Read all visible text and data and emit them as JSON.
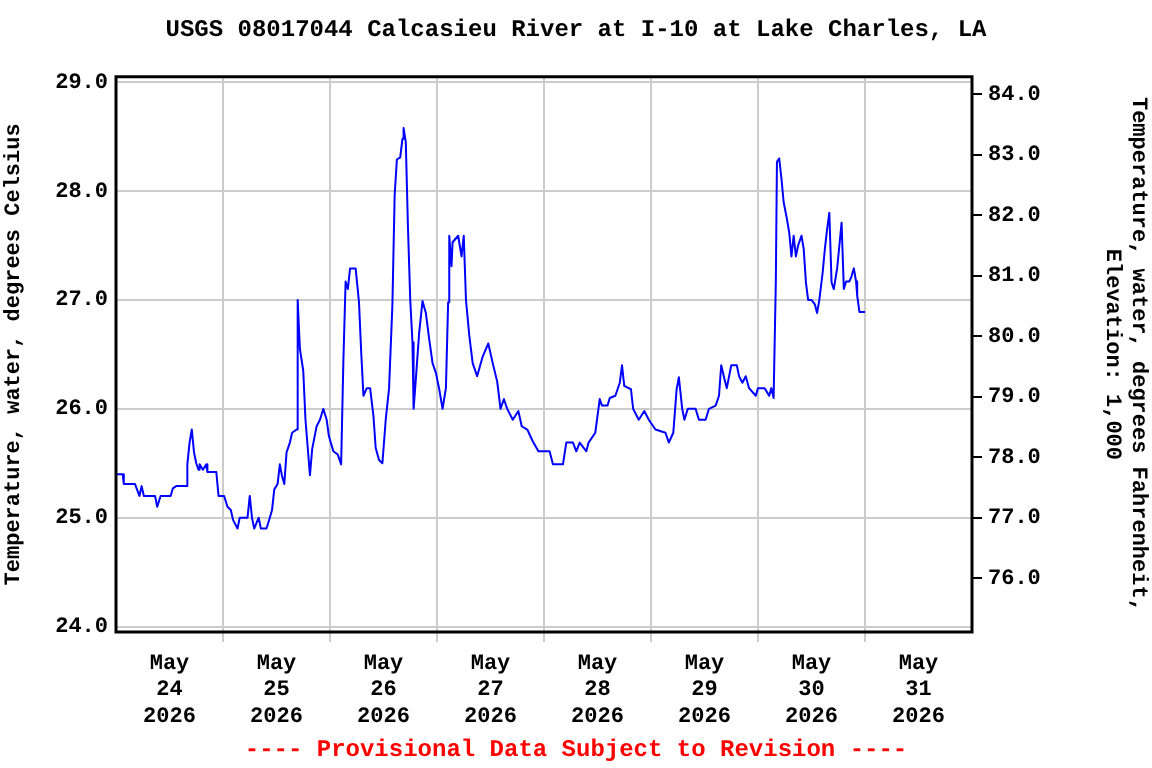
{
  "chart_data": {
    "type": "line",
    "title": "USGS 08017044 Calcasieu River at I-10 at Lake Charles, LA",
    "ylabel": "Temperature, water, degrees Celsius",
    "y2label": "Temperature, water, degrees Fahrenheit,\nElevation: 1,000",
    "annotations": [
      "---- Provisional Data Subject to Revision ----"
    ],
    "x": [
      "2026-05-24T00:00",
      "2026-05-24T01:30",
      "2026-05-24T01:45",
      "2026-05-24T04:15",
      "2026-05-24T05:15",
      "2026-05-24T05:45",
      "2026-05-24T06:15",
      "2026-05-24T08:45",
      "2026-05-24T09:15",
      "2026-05-24T10:00",
      "2026-05-24T12:15",
      "2026-05-24T12:45",
      "2026-05-24T13:30",
      "2026-05-24T15:45",
      "2026-05-24T16:00",
      "2026-05-24T16:30",
      "2026-05-24T17:00",
      "2026-05-24T17:30",
      "2026-05-24T18:00",
      "2026-05-24T18:30",
      "2026-05-24T18:45",
      "2026-05-24T19:30",
      "2026-05-24T20:15",
      "2026-05-24T20:30",
      "2026-05-24T22:30",
      "2026-05-24T23:00",
      "2026-05-25T00:15",
      "2026-05-25T01:00",
      "2026-05-25T01:45",
      "2026-05-25T02:15",
      "2026-05-25T03:15",
      "2026-05-25T03:45",
      "2026-05-25T05:30",
      "2026-05-25T06:00",
      "2026-05-25T06:30",
      "2026-05-25T07:00",
      "2026-05-25T08:00",
      "2026-05-25T08:30",
      "2026-05-25T09:45",
      "2026-05-25T10:30",
      "2026-05-25T11:00",
      "2026-05-25T11:30",
      "2026-05-25T12:15",
      "2026-05-25T12:45",
      "2026-05-25T13:15",
      "2026-05-25T13:45",
      "2026-05-25T14:15",
      "2026-05-25T15:00",
      "2026-05-25T15:30",
      "2026-05-25T16:30",
      "2026-05-25T16:45",
      "2026-05-25T17:15",
      "2026-05-25T18:00",
      "2026-05-25T18:30",
      "2026-05-25T19:30",
      "2026-05-25T20:00",
      "2026-05-25T21:00",
      "2026-05-25T21:45",
      "2026-05-25T22:30",
      "2026-05-25T23:15",
      "2026-05-25T23:45",
      "2026-05-26T00:45",
      "2026-05-26T01:45",
      "2026-05-26T02:30",
      "2026-05-26T03:00",
      "2026-05-26T03:30",
      "2026-05-26T04:00",
      "2026-05-26T04:30",
      "2026-05-26T05:45",
      "2026-05-26T06:30",
      "2026-05-26T07:00",
      "2026-05-26T07:30",
      "2026-05-26T08:15",
      "2026-05-26T09:00",
      "2026-05-26T09:45",
      "2026-05-26T10:15",
      "2026-05-26T11:00",
      "2026-05-26T11:45",
      "2026-05-26T12:30",
      "2026-05-26T13:15",
      "2026-05-26T14:00",
      "2026-05-26T14:30",
      "2026-05-26T15:00",
      "2026-05-26T15:45",
      "2026-05-26T16:15",
      "2026-05-26T16:30",
      "2026-05-26T17:00",
      "2026-05-26T17:30",
      "2026-05-26T18:00",
      "2026-05-26T18:30",
      "2026-05-26T18:45",
      "2026-05-26T19:15",
      "2026-05-26T20:00",
      "2026-05-26T20:45",
      "2026-05-26T21:30",
      "2026-05-26T22:15",
      "2026-05-26T23:00",
      "2026-05-26T23:45",
      "2026-05-27T00:30",
      "2026-05-27T01:15",
      "2026-05-27T02:00",
      "2026-05-27T02:30",
      "2026-05-27T02:45",
      "2026-05-27T03:15",
      "2026-05-27T03:30",
      "2026-05-27T04:45",
      "2026-05-27T05:30",
      "2026-05-27T06:00",
      "2026-05-27T06:30",
      "2026-05-27T07:15",
      "2026-05-27T08:00",
      "2026-05-27T09:00",
      "2026-05-27T10:15",
      "2026-05-27T11:30",
      "2026-05-27T12:30",
      "2026-05-27T13:30",
      "2026-05-27T14:15",
      "2026-05-27T15:00",
      "2026-05-27T15:45",
      "2026-05-27T17:00",
      "2026-05-27T18:15",
      "2026-05-27T19:00",
      "2026-05-27T20:15",
      "2026-05-27T21:30",
      "2026-05-27T22:45",
      "2026-05-28T01:15",
      "2026-05-28T02:00",
      "2026-05-28T04:15",
      "2026-05-28T05:00",
      "2026-05-28T06:30",
      "2026-05-28T07:15",
      "2026-05-28T08:00",
      "2026-05-28T09:30",
      "2026-05-28T10:00",
      "2026-05-28T11:30",
      "2026-05-28T12:30",
      "2026-05-28T13:00",
      "2026-05-28T14:15",
      "2026-05-28T14:45",
      "2026-05-28T16:00",
      "2026-05-28T17:00",
      "2026-05-28T17:30",
      "2026-05-28T18:00",
      "2026-05-28T19:30",
      "2026-05-28T20:00",
      "2026-05-28T21:15",
      "2026-05-28T22:30",
      "2026-05-28T23:30",
      "2026-05-29T01:00",
      "2026-05-29T03:15",
      "2026-05-29T04:00",
      "2026-05-29T05:00",
      "2026-05-29T05:45",
      "2026-05-29T06:15",
      "2026-05-29T07:00",
      "2026-05-29T07:30",
      "2026-05-29T08:15",
      "2026-05-29T10:00",
      "2026-05-29T10:45",
      "2026-05-29T12:15",
      "2026-05-29T13:00",
      "2026-05-29T14:30",
      "2026-05-29T15:15",
      "2026-05-29T15:45",
      "2026-05-29T16:30",
      "2026-05-29T17:00",
      "2026-05-29T18:00",
      "2026-05-29T19:15",
      "2026-05-29T19:45",
      "2026-05-29T20:30",
      "2026-05-29T21:15",
      "2026-05-29T22:00",
      "2026-05-29T23:30",
      "2026-05-30T00:00",
      "2026-05-30T01:30",
      "2026-05-30T02:30",
      "2026-05-30T03:00",
      "2026-05-30T03:30",
      "2026-05-30T04:00",
      "2026-05-30T04:15",
      "2026-05-30T04:45",
      "2026-05-30T05:15",
      "2026-05-30T05:45",
      "2026-05-30T06:30",
      "2026-05-30T07:00",
      "2026-05-30T07:30",
      "2026-05-30T08:00",
      "2026-05-30T08:30",
      "2026-05-30T09:00",
      "2026-05-30T09:45",
      "2026-05-30T10:15",
      "2026-05-30T10:45",
      "2026-05-30T11:15",
      "2026-05-30T12:00",
      "2026-05-30T12:45",
      "2026-05-30T13:15",
      "2026-05-30T13:45",
      "2026-05-30T14:30",
      "2026-05-30T15:00",
      "2026-05-30T15:30",
      "2026-05-30T16:00",
      "2026-05-30T16:30",
      "2026-05-30T17:00",
      "2026-05-30T17:45",
      "2026-05-30T18:15",
      "2026-05-30T18:45",
      "2026-05-30T19:15",
      "2026-05-30T19:45",
      "2026-05-30T20:30",
      "2026-05-30T21:00",
      "2026-05-30T21:30",
      "2026-05-30T22:00",
      "2026-05-30T22:15",
      "2026-05-30T22:45",
      "2026-05-31T00:00"
    ],
    "series": [
      {
        "color": "#0000ff",
        "values": [
          25.4,
          25.4,
          25.31,
          25.31,
          25.2,
          25.29,
          25.2,
          25.2,
          25.1,
          25.2,
          25.2,
          25.27,
          25.29,
          25.29,
          25.49,
          25.69,
          25.81,
          25.6,
          25.5,
          25.44,
          25.49,
          25.44,
          25.49,
          25.42,
          25.42,
          25.2,
          25.2,
          25.1,
          25.07,
          24.98,
          24.9,
          25.0,
          25.0,
          25.2,
          25.0,
          24.9,
          25.0,
          24.9,
          24.9,
          25.0,
          25.07,
          25.26,
          25.31,
          25.49,
          25.38,
          25.31,
          25.6,
          25.69,
          25.78,
          25.81,
          27.0,
          26.55,
          26.35,
          25.9,
          25.39,
          25.63,
          25.84,
          25.9,
          26.0,
          25.9,
          25.75,
          25.61,
          25.58,
          25.49,
          26.44,
          27.17,
          27.1,
          27.29,
          27.29,
          26.98,
          26.52,
          26.12,
          26.19,
          26.19,
          25.93,
          25.64,
          25.53,
          25.5,
          25.9,
          26.19,
          26.96,
          27.96,
          28.29,
          28.31,
          28.48,
          28.58,
          28.45,
          27.65,
          27.0,
          26.61,
          26.0,
          26.27,
          26.7,
          26.99,
          26.88,
          26.64,
          26.42,
          26.33,
          26.18,
          26.0,
          26.19,
          26.98,
          27.59,
          27.31,
          27.53,
          27.59,
          27.4,
          27.59,
          27.0,
          26.67,
          26.42,
          26.3,
          26.48,
          26.6,
          26.42,
          26.25,
          26.0,
          26.09,
          26.0,
          25.9,
          25.98,
          25.84,
          25.81,
          25.7,
          25.61,
          25.61,
          25.49,
          25.49,
          25.69,
          25.69,
          25.61,
          25.69,
          25.61,
          25.69,
          25.78,
          26.09,
          26.03,
          26.03,
          26.1,
          26.12,
          26.24,
          26.4,
          26.21,
          26.18,
          26.0,
          25.9,
          25.98,
          25.9,
          25.81,
          25.78,
          25.69,
          25.78,
          26.18,
          26.29,
          26.0,
          25.9,
          26.0,
          26.0,
          25.9,
          25.9,
          26.0,
          26.03,
          26.12,
          26.4,
          26.27,
          26.19,
          26.4,
          26.4,
          26.3,
          26.24,
          26.3,
          26.19,
          26.12,
          26.19,
          26.19,
          26.12,
          26.19,
          26.1,
          27.17,
          28.27,
          28.3,
          28.12,
          27.9,
          27.74,
          27.62,
          27.4,
          27.59,
          27.4,
          27.5,
          27.59,
          27.47,
          27.16,
          27.0,
          27.0,
          26.96,
          26.88,
          27.0,
          27.25,
          27.47,
          27.65,
          27.8,
          27.16,
          27.1,
          27.29,
          27.5,
          27.71,
          27.1,
          27.17,
          27.17,
          27.22,
          27.29,
          27.17,
          27.04,
          26.89,
          26.89
        ]
      }
    ],
    "xlim": [
      "2026-05-24T00:00",
      "2026-06-01T00:00"
    ],
    "xticks": [
      {
        "value": "2026-05-24T12:00",
        "label": "May 24 2026"
      },
      {
        "value": "2026-05-25T00:00",
        "label": null
      },
      {
        "value": "2026-05-25T12:00",
        "label": "May 25 2026"
      },
      {
        "value": "2026-05-26T00:00",
        "label": null
      },
      {
        "value": "2026-05-26T12:00",
        "label": "May 26 2026"
      },
      {
        "value": "2026-05-27T00:00",
        "label": null
      },
      {
        "value": "2026-05-27T12:00",
        "label": "May 27 2026"
      },
      {
        "value": "2026-05-28T00:00",
        "label": null
      },
      {
        "value": "2026-05-28T12:00",
        "label": "May 28 2026"
      },
      {
        "value": "2026-05-29T00:00",
        "label": null
      },
      {
        "value": "2026-05-29T12:00",
        "label": "May 29 2026"
      },
      {
        "value": "2026-05-30T00:00",
        "label": null
      },
      {
        "value": "2026-05-30T12:00",
        "label": "May 30 2026"
      },
      {
        "value": "2026-05-31T00:00",
        "label": null
      },
      {
        "value": "2026-05-31T12:00",
        "label": "May 31 2026"
      }
    ],
    "ylim": [
      23.95,
      29.05
    ],
    "yticks": [
      {
        "value": 24,
        "label": "24.0"
      },
      {
        "value": 25,
        "label": "25.0"
      },
      {
        "value": 26,
        "label": "26.0"
      },
      {
        "value": 27,
        "label": "27.0"
      },
      {
        "value": 28,
        "label": "28.0"
      },
      {
        "value": 29,
        "label": "29.0"
      }
    ],
    "y2lim": [
      75.11,
      84.29
    ],
    "y2ticks": [
      {
        "value": 76,
        "label": "76.0"
      },
      {
        "value": 77,
        "label": "77.0"
      },
      {
        "value": 78,
        "label": "78.0"
      },
      {
        "value": 79,
        "label": "79.0"
      },
      {
        "value": 80,
        "label": "80.0"
      },
      {
        "value": 81,
        "label": "81.0"
      },
      {
        "value": 82,
        "label": "82.0"
      },
      {
        "value": 83,
        "label": "83.0"
      },
      {
        "value": 84,
        "label": "84.0"
      }
    ],
    "grid": true,
    "marker": "none",
    "line_style": "solid"
  }
}
